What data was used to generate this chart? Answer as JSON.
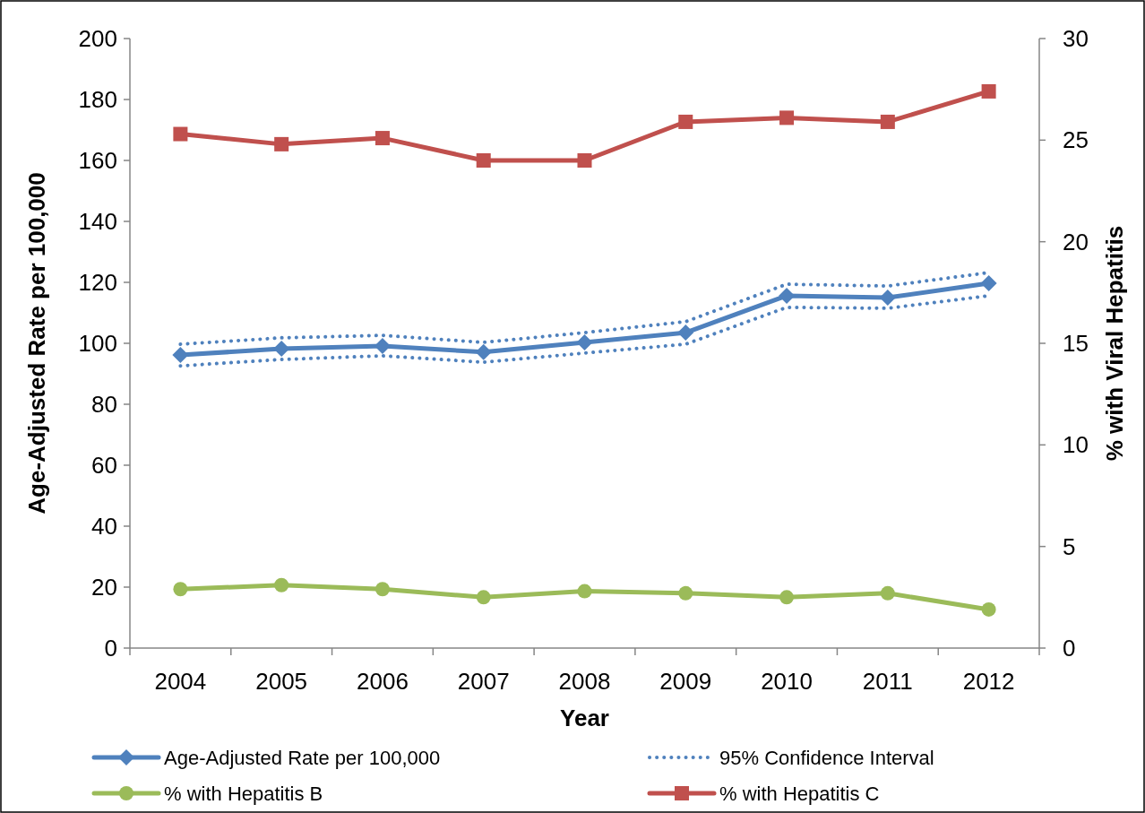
{
  "chart_data": {
    "type": "line",
    "xlabel": "Year",
    "ylabel": "Age-Adjusted Rate per 100,000",
    "y2label": "% with Viral Hepatitis",
    "categories": [
      "2004",
      "2005",
      "2006",
      "2007",
      "2008",
      "2009",
      "2010",
      "2011",
      "2012"
    ],
    "ylim": [
      0,
      200
    ],
    "yticks": [
      0,
      20,
      40,
      60,
      80,
      100,
      120,
      140,
      160,
      180,
      200
    ],
    "y2lim": [
      0,
      30
    ],
    "y2ticks": [
      0,
      5,
      10,
      15,
      20,
      25,
      30
    ],
    "grid": false,
    "legend": "bottom",
    "series": [
      {
        "name": "Age-Adjusted Rate per 100,000",
        "color": "#4f81bd",
        "marker": "diamond",
        "line_style": "solid",
        "values": [
          96.2,
          98.2,
          99.1,
          97.1,
          100.3,
          103.5,
          115.6,
          115.0,
          119.7
        ]
      },
      {
        "name": "95% Confidence Interval",
        "color": "#4f81bd",
        "marker": "none",
        "line_style": "dotted",
        "values": [
          99.7,
          101.8,
          102.6,
          100.3,
          103.5,
          107.1,
          119.4,
          118.8,
          123.2
        ]
      },
      {
        "color": "#4f81bd",
        "marker": "none",
        "line_style": "dotted",
        "values": [
          92.6,
          94.7,
          95.9,
          93.8,
          96.8,
          99.7,
          111.8,
          111.5,
          115.6
        ]
      },
      {
        "name": "% with Hepatitis B",
        "color": "#9bbb59",
        "marker": "circle",
        "line_style": "solid",
        "axis": "y2",
        "values": [
          2.9,
          3.1,
          2.9,
          2.5,
          2.8,
          2.7,
          2.5,
          2.7,
          1.9
        ]
      },
      {
        "name": "% with Hepatitis C",
        "color": "#c0504d",
        "marker": "square",
        "line_style": "solid",
        "axis": "y2",
        "values": [
          25.3,
          24.8,
          25.1,
          24.0,
          24.0,
          25.9,
          26.1,
          25.9,
          27.4
        ]
      }
    ]
  }
}
